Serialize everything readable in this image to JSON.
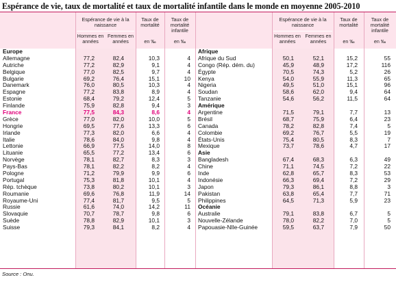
{
  "title": "Espérance de vie, taux de mortalité et taux de mortalité infantile dans le monde en moyenne 2005-2010",
  "headers": {
    "esperance": "Espérance de vie à la naissance",
    "hommes": "Hommes en années",
    "femmes": "Femmes en années",
    "taux": "Taux de mortalité",
    "taux_unit": "en ‰",
    "infantile": "Taux de mortalité infantile",
    "infantile_unit": "en ‰"
  },
  "colors": {
    "accent": "#c2185b",
    "highlight": "#e0007a",
    "header_bg": "#fde4ec"
  },
  "left_rows": [
    {
      "type": "region",
      "name": "Europe"
    },
    {
      "name": "Allemagne",
      "h": "77,2",
      "f": "82,4",
      "t": "10,3",
      "i": "4"
    },
    {
      "name": "Autriche",
      "h": "77,2",
      "f": "82,9",
      "t": "9,1",
      "i": "4"
    },
    {
      "name": "Belgique",
      "h": "77,0",
      "f": "82,5",
      "t": "9,7",
      "i": "4"
    },
    {
      "name": "Bulgarie",
      "h": "69,2",
      "f": "76,4",
      "t": "15,1",
      "i": "10"
    },
    {
      "name": "Danemark",
      "h": "76,0",
      "f": "80,5",
      "t": "10,3",
      "i": "4"
    },
    {
      "name": "Espagne",
      "h": "77,2",
      "f": "83,8",
      "t": "8,9",
      "i": "4"
    },
    {
      "name": "Estonie",
      "h": "68,4",
      "f": "79,2",
      "t": "12,4",
      "i": "5"
    },
    {
      "name": "Finlande",
      "h": "75,9",
      "f": "82,8",
      "t": "9,4",
      "i": "3"
    },
    {
      "name": "France",
      "h": "77,5",
      "f": "84,3",
      "t": "8,6",
      "i": "4",
      "hl": true
    },
    {
      "name": "Grèce",
      "h": "77,0",
      "f": "82,0",
      "t": "10,0",
      "i": "5"
    },
    {
      "name": "Hongrie",
      "h": "69,5",
      "f": "77,6",
      "t": "13,3",
      "i": "6"
    },
    {
      "name": "Irlande",
      "h": "77,3",
      "f": "82,0",
      "t": "6,6",
      "i": "4"
    },
    {
      "name": "Italie",
      "h": "78,6",
      "f": "84,0",
      "t": "9,8",
      "i": "4"
    },
    {
      "name": "Lettonie",
      "h": "66,9",
      "f": "77,5",
      "t": "14,0",
      "i": "8"
    },
    {
      "name": "Lituanie",
      "h": "65,5",
      "f": "77,2",
      "t": "13,4",
      "i": "6"
    },
    {
      "name": "Norvège",
      "h": "78,1",
      "f": "82,7",
      "t": "8,3",
      "i": "3"
    },
    {
      "name": "Pays-Bas",
      "h": "78,1",
      "f": "82,2",
      "t": "8,2",
      "i": "4"
    },
    {
      "name": "Pologne",
      "h": "71,2",
      "f": "79,9",
      "t": "9,9",
      "i": "6"
    },
    {
      "name": "Portugal",
      "h": "75,3",
      "f": "81,8",
      "t": "10,1",
      "i": "4"
    },
    {
      "name": "Rép. tchèque",
      "h": "73,8",
      "f": "80,2",
      "t": "10,1",
      "i": "3"
    },
    {
      "name": "Roumanie",
      "h": "69,6",
      "f": "76,8",
      "t": "11,9",
      "i": "14"
    },
    {
      "name": "Royaume-Uni",
      "h": "77,4",
      "f": "81,7",
      "t": "9,5",
      "i": "5"
    },
    {
      "name": "Russie",
      "h": "61,6",
      "f": "74,0",
      "t": "14,2",
      "i": "11"
    },
    {
      "name": "Slovaquie",
      "h": "70,7",
      "f": "78,7",
      "t": "9,8",
      "i": "6"
    },
    {
      "name": "Suède",
      "h": "78,8",
      "f": "82,9",
      "t": "10,1",
      "i": "3"
    },
    {
      "name": "Suisse",
      "h": "79,3",
      "f": "84,1",
      "t": "8,2",
      "i": "4"
    }
  ],
  "right_rows": [
    {
      "type": "region",
      "name": "Afrique"
    },
    {
      "name": "Afrique du Sud",
      "h": "50,1",
      "f": "52,1",
      "t": "15,2",
      "i": "55"
    },
    {
      "name": "Congo (Rép. dém. du)",
      "h": "45,9",
      "f": "48,9",
      "t": "17,2",
      "i": "116"
    },
    {
      "name": "Égypte",
      "h": "70,5",
      "f": "74,3",
      "t": "5,2",
      "i": "26"
    },
    {
      "name": "Kenya",
      "h": "54,0",
      "f": "55,9",
      "t": "11,3",
      "i": "65"
    },
    {
      "name": "Nigeria",
      "h": "49,5",
      "f": "51,0",
      "t": "15,1",
      "i": "96"
    },
    {
      "name": "Soudan",
      "h": "58,6",
      "f": "62,0",
      "t": "9,4",
      "i": "64"
    },
    {
      "name": "Tanzanie",
      "h": "54,6",
      "f": "56,2",
      "t": "11,5",
      "i": "64"
    },
    {
      "type": "region",
      "name": "Amérique"
    },
    {
      "name": "Argentine",
      "h": "71,5",
      "f": "79,1",
      "t": "7,7",
      "i": "13"
    },
    {
      "name": "Brésil",
      "h": "68,7",
      "f": "75,9",
      "t": "6,4",
      "i": "23"
    },
    {
      "name": "Canada",
      "h": "78,2",
      "f": "82,8",
      "t": "7,4",
      "i": "5"
    },
    {
      "name": "Colombie",
      "h": "69,2",
      "f": "76,7",
      "t": "5,5",
      "i": "19"
    },
    {
      "name": "États-Unis",
      "h": "75,4",
      "f": "80,5",
      "t": "8,3",
      "i": "7"
    },
    {
      "name": "Mexique",
      "h": "73,7",
      "f": "78,6",
      "t": "4,7",
      "i": "17"
    },
    {
      "type": "region",
      "name": "Asie"
    },
    {
      "name": "Bangladesh",
      "h": "67,4",
      "f": "68,3",
      "t": "6,3",
      "i": "49"
    },
    {
      "name": "Chine",
      "h": "71,1",
      "f": "74,5",
      "t": "7,2",
      "i": "22"
    },
    {
      "name": "Inde",
      "h": "62,8",
      "f": "65,7",
      "t": "8,3",
      "i": "53"
    },
    {
      "name": "Indonésie",
      "h": "66,3",
      "f": "69,4",
      "t": "7,2",
      "i": "29"
    },
    {
      "name": "Japon",
      "h": "79,3",
      "f": "86,1",
      "t": "8,8",
      "i": "3"
    },
    {
      "name": "Pakistan",
      "h": "63,8",
      "f": "65,4",
      "t": "7,7",
      "i": "71"
    },
    {
      "name": "Philippines",
      "h": "64,5",
      "f": "71,3",
      "t": "5,9",
      "i": "23"
    },
    {
      "type": "region",
      "name": "Océanie"
    },
    {
      "name": "Australie",
      "h": "79,1",
      "f": "83,8",
      "t": "6,7",
      "i": "5"
    },
    {
      "name": "Nouvelle-Zélande",
      "h": "78,0",
      "f": "82,2",
      "t": "7,0",
      "i": "5"
    },
    {
      "name": "Papouasie-NIle-Guinée",
      "h": "59,5",
      "f": "63,7",
      "t": "7,9",
      "i": "50"
    }
  ],
  "source": "Source : Onu."
}
